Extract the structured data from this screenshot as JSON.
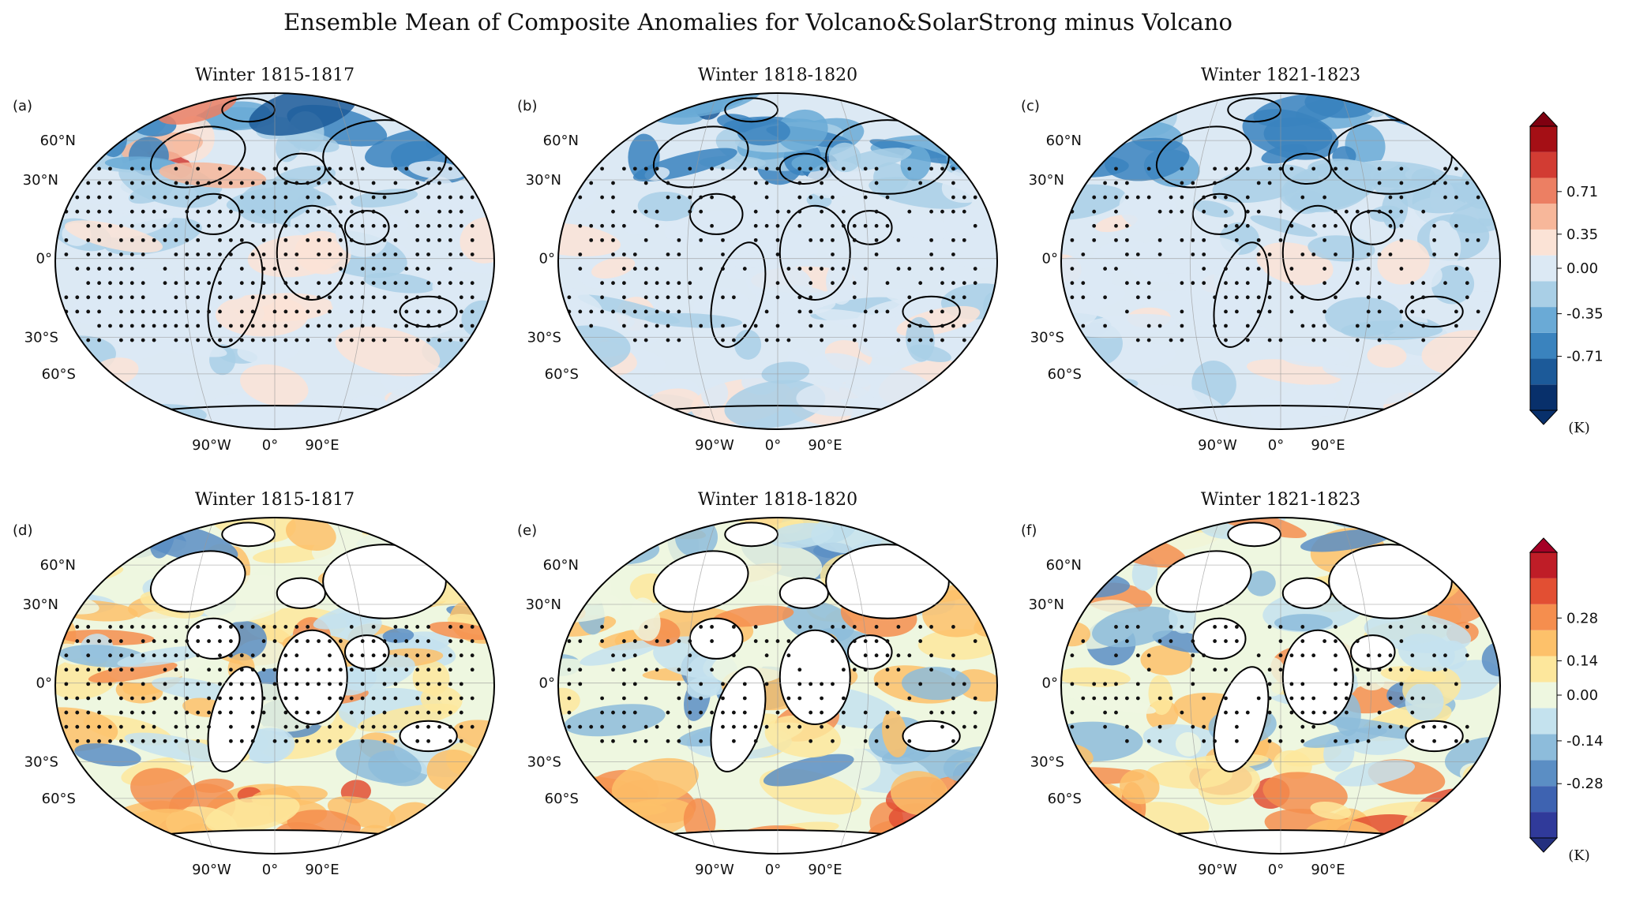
{
  "figure": {
    "title": "Ensemble Mean of Composite Anomalies for Volcano&SolarStrong minus Volcano"
  },
  "panels": [
    {
      "id": "a",
      "label": "(a)",
      "title": "Winter 1815-1817",
      "row": 0,
      "col": 0,
      "scheme": "temp"
    },
    {
      "id": "b",
      "label": "(b)",
      "title": "Winter 1818-1820",
      "row": 0,
      "col": 1,
      "scheme": "temp"
    },
    {
      "id": "c",
      "label": "(c)",
      "title": "Winter 1821-1823",
      "row": 0,
      "col": 2,
      "scheme": "temp"
    },
    {
      "id": "d",
      "label": "(d)",
      "title": "Winter 1815-1817",
      "row": 1,
      "col": 0,
      "scheme": "ocean"
    },
    {
      "id": "e",
      "label": "(e)",
      "title": "Winter 1818-1820",
      "row": 1,
      "col": 1,
      "scheme": "ocean"
    },
    {
      "id": "f",
      "label": "(f)",
      "title": "Winter 1821-1823",
      "row": 1,
      "col": 2,
      "scheme": "ocean"
    }
  ],
  "axes": {
    "lat_labels": [
      "60°N",
      "30°N",
      "0°",
      "30°S",
      "60°S"
    ],
    "lon_labels": [
      "90°W",
      "0°",
      "90°E"
    ]
  },
  "colorbars": [
    {
      "unit": "(K)",
      "tick_labels": [
        "0.71",
        "0.35",
        "0.00",
        "-0.35",
        "-0.71"
      ],
      "colors": [
        "#08306b",
        "#1c5a99",
        "#3a83be",
        "#6aaad6",
        "#a9cfe6",
        "#dce9f4",
        "#fbe3d6",
        "#f7b79a",
        "#ec7f63",
        "#d23c33",
        "#a50f15"
      ],
      "under": "#08306b",
      "over": "#7f0010"
    },
    {
      "unit": "(K)",
      "tick_labels": [
        "0.28",
        "0.14",
        "0.00",
        "-0.14",
        "-0.28"
      ],
      "colors": [
        "#303a9a",
        "#3e63b1",
        "#5b8ec4",
        "#8dbcdb",
        "#c4e2ee",
        "#eef7e0",
        "#fde79c",
        "#fdc16a",
        "#f58e4e",
        "#e24f33",
        "#bf1d27"
      ],
      "under": "#24307f",
      "over": "#a50026"
    }
  ],
  "map_notes": {
    "stippling": "dots mark statistically significant regions",
    "land_in_bottom_row": "white (masked)"
  }
}
